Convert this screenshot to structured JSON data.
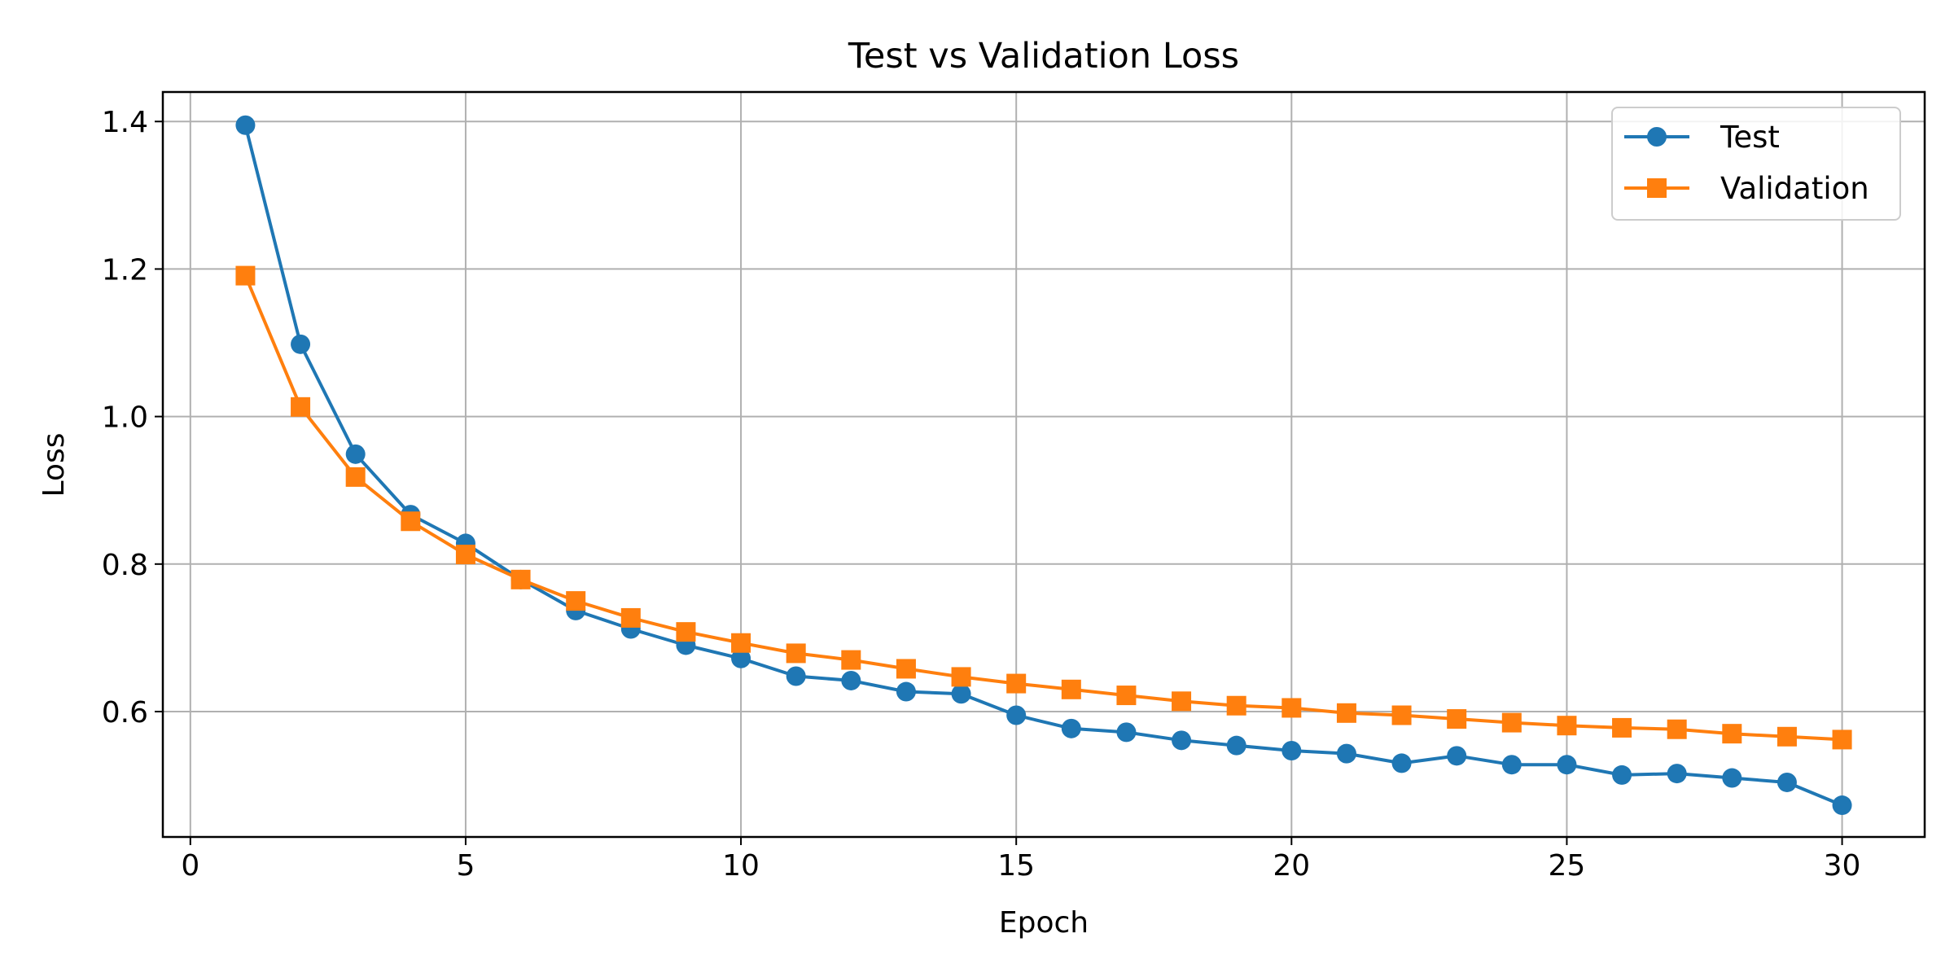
{
  "colors": {
    "test": "#1f77b4",
    "validation": "#ff7f0e",
    "grid": "#b0b0b0",
    "axes": "#000000"
  },
  "chart_data": {
    "type": "line",
    "title": "Test vs Validation Loss",
    "xlabel": "Epoch",
    "ylabel": "Loss",
    "xlim": [
      -0.5,
      31.5
    ],
    "ylim": [
      0.43,
      1.44
    ],
    "xticks": [
      0,
      5,
      10,
      15,
      20,
      25,
      30
    ],
    "xtick_labels": [
      "0",
      "5",
      "10",
      "15",
      "20",
      "25",
      "30"
    ],
    "yticks": [
      0.6,
      0.8,
      1.0,
      1.2,
      1.4
    ],
    "ytick_labels": [
      "0.6",
      "0.8",
      "1.0",
      "1.2",
      "1.4"
    ],
    "grid": true,
    "legend_position": "top-right",
    "x": [
      1,
      2,
      3,
      4,
      5,
      6,
      7,
      8,
      9,
      10,
      11,
      12,
      13,
      14,
      15,
      16,
      17,
      18,
      19,
      20,
      21,
      22,
      23,
      24,
      25,
      26,
      27,
      28,
      29,
      30
    ],
    "series": [
      {
        "name": "Test",
        "marker": "circle",
        "color": "#1f77b4",
        "values": [
          1.395,
          1.098,
          0.949,
          0.867,
          0.828,
          0.779,
          0.737,
          0.712,
          0.69,
          0.672,
          0.648,
          0.642,
          0.627,
          0.624,
          0.595,
          0.577,
          0.572,
          0.561,
          0.554,
          0.547,
          0.543,
          0.53,
          0.54,
          0.528,
          0.528,
          0.514,
          0.516,
          0.51,
          0.504,
          0.473
        ]
      },
      {
        "name": "Validation",
        "marker": "square",
        "color": "#ff7f0e",
        "values": [
          1.191,
          1.013,
          0.918,
          0.858,
          0.813,
          0.779,
          0.75,
          0.727,
          0.708,
          0.693,
          0.679,
          0.67,
          0.658,
          0.647,
          0.638,
          0.63,
          0.622,
          0.614,
          0.608,
          0.605,
          0.598,
          0.595,
          0.59,
          0.585,
          0.581,
          0.578,
          0.576,
          0.57,
          0.566,
          0.562
        ]
      }
    ]
  }
}
